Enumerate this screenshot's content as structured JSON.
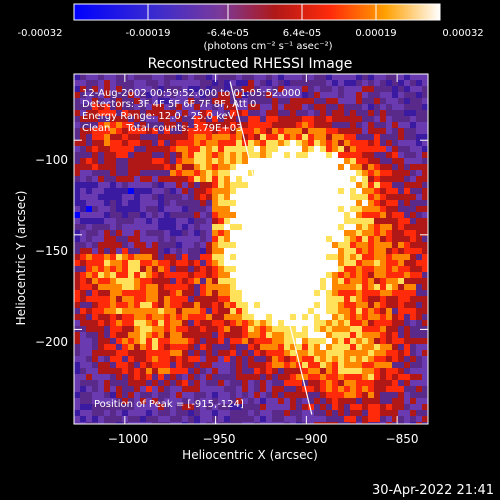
{
  "colorbar": {
    "tick_labels": [
      "-0.00032",
      "-0.00019",
      "-6.4e-05",
      "6.4e-05",
      "0.00019",
      "0.00032"
    ],
    "unit_label": "(photons cm⁻² s⁻¹ asec⁻²)",
    "range": [
      -0.00032,
      0.00032
    ]
  },
  "annotations": {
    "line1": "12-Aug-2002 00:59:52.000 to 01:05:52.000",
    "line2": "Detectors: 3F 4F 5F 6F 7F 8F, Att 0",
    "line3": "Energy Range: 12.0 - 25.0 keV",
    "line4": "Clean     Total counts: 3.79E+03",
    "peak": "Position of Peak = [-915,-124]"
  },
  "footer": {
    "timestamp": "30-Apr-2022 21:41"
  },
  "chart_data": {
    "type": "heatmap",
    "title": "Reconstructed RHESSI Image",
    "xlabel": "Heliocentric X (arcsec)",
    "ylabel": "Heliocentric Y (arcsec)",
    "xlim": [
      -1028,
      -833
    ],
    "ylim": [
      -250,
      -65
    ],
    "x_ticks": [
      -1000,
      -950,
      -900,
      -850
    ],
    "x_tick_labels": [
      "−1000",
      "−950",
      "−900",
      "−850"
    ],
    "y_ticks": [
      -100,
      -150,
      -200
    ],
    "y_tick_labels": [
      "−100",
      "−150",
      "−200"
    ],
    "peak_position": [
      -915,
      -124
    ],
    "limb_line": {
      "x": [
        -942,
        -897
      ],
      "y": [
        -69,
        -245
      ]
    },
    "grid": false,
    "colormap": [
      "#0000ff",
      "#3a1aa0",
      "#6a3bb0",
      "#5a2a8a",
      "#b01818",
      "#ff2a0a",
      "#ff8800",
      "#ffe15a",
      "#ffffff"
    ]
  }
}
